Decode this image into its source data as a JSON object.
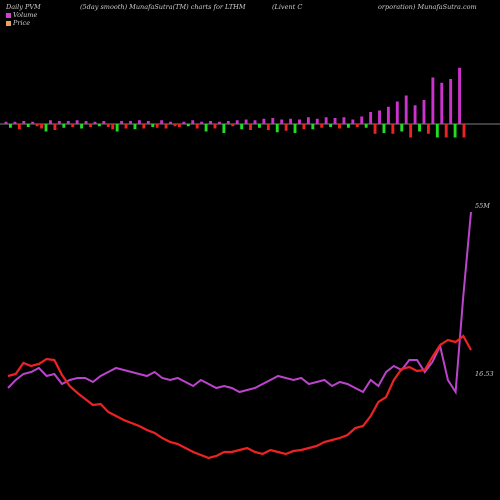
{
  "header": {
    "left": "Daily PVM",
    "mid": "(5day smooth) MunafaSutra(TM) charts for LTHM",
    "right_a": "(Livent C",
    "right_b": "orporation) MunafaSutra.com"
  },
  "legend": [
    {
      "label": "Volume",
      "color": "#cc44cc"
    },
    {
      "label": "Price",
      "color": "#e6a060"
    }
  ],
  "chart_data": {
    "type": "bar",
    "volume_bars": {
      "up_color": "#cc33cc",
      "down_color_a": "#22dd22",
      "down_color_b": "#ee2222",
      "values": [
        3,
        -5,
        3,
        -7,
        4,
        -4,
        3,
        -3,
        -6,
        -10,
        5,
        -8,
        4,
        -5,
        4,
        -4,
        5,
        -6,
        4,
        -4,
        3,
        -3,
        4,
        -4,
        -7,
        -10,
        4,
        -6,
        4,
        -7,
        5,
        -6,
        4,
        -4,
        -5,
        5,
        -6,
        3,
        -3,
        -4,
        3,
        -3,
        5,
        -6,
        3,
        -10,
        4,
        -6,
        3,
        -12,
        4,
        -3,
        5,
        -7,
        6,
        -8,
        5,
        -5,
        7,
        -8,
        8,
        -11,
        6,
        -9,
        7,
        -12,
        6,
        -7,
        9,
        -7,
        7,
        -5,
        9,
        -4,
        8,
        -6,
        9,
        -5,
        6,
        -4,
        10,
        -5,
        16,
        -13,
        18,
        -12,
        23,
        -13,
        30,
        -10,
        38,
        -18,
        25,
        -10,
        32,
        -13,
        62,
        -18,
        55,
        -18,
        60,
        -18,
        75,
        -18
      ]
    },
    "price_line": {
      "color": "#ee2222",
      "values": [
        -8,
        -6,
        5,
        2,
        4,
        9,
        8,
        -7,
        -18,
        -25,
        -31,
        -37,
        -36,
        -44,
        -48,
        -52,
        -55,
        -58,
        -62,
        -65,
        -70,
        -74,
        -76,
        -80,
        -84,
        -87,
        -90,
        -88,
        -84,
        -84,
        -82,
        -80,
        -84,
        -86,
        -82,
        -84,
        -86,
        -83,
        -82,
        -80,
        -78,
        -74,
        -72,
        -70,
        -67,
        -60,
        -58,
        -48,
        -34,
        -29,
        -12,
        -1,
        1,
        -3,
        -2,
        11,
        23,
        28,
        26,
        32,
        18
      ]
    },
    "volume_line": {
      "color": "#bb44cc",
      "values": [
        -10,
        -6,
        -3,
        -2,
        0,
        -4,
        -3,
        -8,
        -6,
        -5,
        -5,
        -7,
        -4,
        -2,
        0,
        -1,
        -2,
        -3,
        -4,
        -2,
        -5,
        -6,
        -5,
        -7,
        -9,
        -6,
        -8,
        -10,
        -9,
        -10,
        -12,
        -11,
        -10,
        -8,
        -6,
        -4,
        -5,
        -6,
        -5,
        -8,
        -7,
        -6,
        -9,
        -7,
        -8,
        -10,
        -12,
        -6,
        -9,
        -2,
        1,
        -1,
        4,
        4,
        -2,
        3,
        11,
        -6,
        -12,
        36,
        78
      ]
    },
    "annotations": {
      "high": "55M",
      "low": "16.53"
    }
  }
}
